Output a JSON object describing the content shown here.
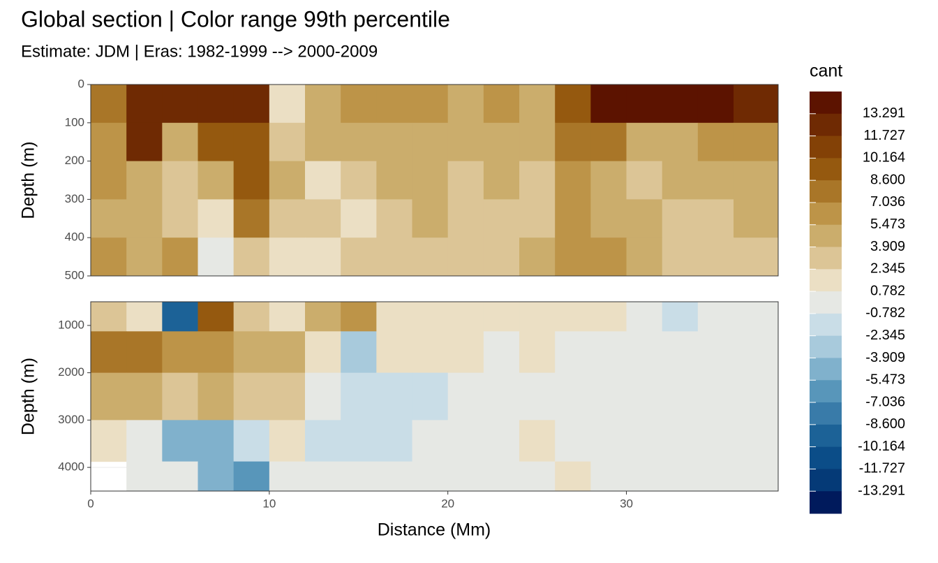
{
  "chart_data": {
    "type": "contour",
    "title": "Global section | Color range 99th percentile",
    "subtitle": "Estimate: JDM  | Eras: 1982-1999 --> 2000-2009",
    "x_label": "Distance (Mm)",
    "xlim": [
      0,
      38.5
    ],
    "xticks": [
      0,
      10,
      20,
      30
    ],
    "x": [
      1,
      3,
      5,
      7,
      9,
      11,
      13,
      15,
      17,
      19,
      21,
      23,
      25,
      27,
      29,
      31,
      33,
      35,
      37
    ],
    "grid": true,
    "panels": [
      {
        "y_label": "Depth (m)",
        "ylim": [
          0,
          500
        ],
        "yticks": [
          0,
          100,
          200,
          300,
          400,
          500
        ],
        "depths": [
          50,
          150,
          250,
          350,
          450
        ],
        "values": [
          [
            8,
            13,
            13,
            13,
            13,
            2,
            5,
            6,
            6,
            6,
            5,
            6,
            5,
            9,
            14,
            14,
            14,
            14,
            13
          ],
          [
            7,
            12,
            4,
            10,
            9,
            3,
            4,
            5,
            5,
            5,
            4,
            4,
            4,
            8,
            8,
            5,
            5,
            7,
            7
          ],
          [
            6,
            5,
            3,
            5,
            10,
            4,
            2,
            3,
            4,
            4,
            3,
            4,
            3,
            6,
            4,
            3,
            4,
            5,
            4
          ],
          [
            5,
            5,
            3,
            2,
            8,
            3,
            3,
            2,
            3,
            4,
            3,
            3,
            3,
            6,
            5,
            4,
            3,
            3,
            4
          ],
          [
            6,
            4,
            6,
            0,
            3,
            1,
            2,
            3,
            3,
            3,
            3,
            3,
            4,
            7,
            7,
            5,
            3,
            3,
            3
          ]
        ]
      },
      {
        "y_label": "Depth (m)",
        "ylim": [
          500,
          4500
        ],
        "yticks": [
          1000,
          2000,
          3000,
          4000
        ],
        "depths": [
          750,
          1500,
          2500,
          3500,
          4250
        ],
        "values": [
          [
            3,
            2,
            -10,
            9,
            3,
            1,
            4,
            6,
            1,
            1,
            1,
            1,
            1,
            1,
            1,
            0,
            -1,
            0,
            0
          ],
          [
            8,
            8,
            6,
            6,
            5,
            4,
            2,
            -3,
            1,
            1,
            1,
            0,
            1,
            0,
            0,
            0,
            0,
            0,
            0
          ],
          [
            5,
            5,
            3,
            4,
            3,
            3,
            0,
            -2,
            -1,
            -1,
            0,
            0,
            0,
            0,
            0,
            0,
            0,
            0,
            0
          ],
          [
            1,
            0,
            -5,
            -4,
            -2,
            2,
            -1,
            -1,
            -1,
            0,
            0,
            0,
            1,
            0,
            0,
            0,
            0,
            0,
            0
          ],
          [
            null,
            0,
            0,
            -5,
            -6,
            0,
            0,
            0,
            0,
            0,
            0,
            0,
            0,
            1,
            0,
            0,
            0,
            0,
            0
          ]
        ]
      }
    ],
    "legend": {
      "title": "cant",
      "colors": [
        "#5c1300",
        "#6f2a03",
        "#834106",
        "#95590f",
        "#a97628",
        "#bd9448",
        "#cbad6c",
        "#dcc596",
        "#ebdfc4",
        "#e6e8e4",
        "#c9dde7",
        "#a8cadc",
        "#80b1cc",
        "#5896ba",
        "#397ba9",
        "#1c6297",
        "#0b4d88",
        "#053a77",
        "#001a5c"
      ],
      "breaks": [
        13.291,
        11.727,
        10.164,
        {
          "value": 8.6,
          "label": "8.600"
        },
        7.036,
        5.473,
        3.909,
        2.345,
        0.782,
        -0.782,
        -2.345,
        -3.909,
        -5.473,
        -7.036,
        {
          "value": -8.6,
          "label": "-8.600"
        },
        -10.164,
        -11.727,
        -13.291
      ]
    }
  }
}
